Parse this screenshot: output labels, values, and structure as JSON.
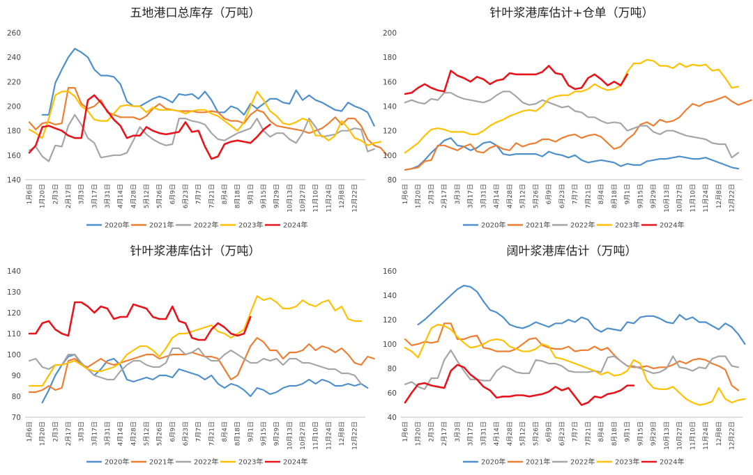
{
  "colors": {
    "2020年": "#4d8fcc",
    "2021年": "#ed7d31",
    "2022年": "#a5a5a5",
    "2023年": "#ffc000",
    "2024年": "#e8141c"
  },
  "x_ticks": [
    "1月6日",
    "1月20日",
    "2月3日",
    "2月17日",
    "3月3日",
    "3月17日",
    "3月31日",
    "4月14日",
    "4月28日",
    "5月12日",
    "5月26日",
    "6月9日",
    "6月23日",
    "7月7日",
    "7月21日",
    "8月4日",
    "8月18日",
    "9月1日",
    "9月15日",
    "9月29日",
    "10月13日",
    "10月27日",
    "11月10日",
    "11月24日",
    "12月8日",
    "12月22日"
  ],
  "chart_data": [
    {
      "type": "line",
      "title": "五地港口总库存（万吨）",
      "ylim": [
        140,
        260
      ],
      "yticks": [
        140,
        160,
        180,
        200,
        220,
        240,
        260
      ],
      "series": [
        {
          "name": "2020年",
          "start": 2,
          "values": [
            193,
            193,
            219,
            230,
            240,
            247,
            244,
            240,
            230,
            225,
            225,
            224,
            218,
            204,
            200,
            200,
            203,
            206,
            208,
            206,
            203,
            210,
            209,
            210,
            206,
            212,
            205,
            195,
            195,
            200,
            198,
            193,
            202,
            198,
            202,
            206,
            206,
            203,
            202,
            213,
            205,
            209,
            205,
            203,
            200,
            197,
            196,
            203,
            200,
            198,
            195,
            184
          ]
        },
        {
          "name": "2021年",
          "values": [
            187,
            181,
            186,
            187,
            185,
            186,
            215,
            215,
            202,
            198,
            200,
            205,
            195,
            193,
            191,
            191,
            191,
            189,
            192,
            198,
            202,
            198,
            197,
            196,
            196,
            196,
            195,
            195,
            196,
            195,
            190,
            188,
            188,
            186,
            193,
            197,
            195,
            188,
            184,
            183,
            182,
            181,
            180,
            178,
            180,
            182,
            186,
            191,
            185,
            190,
            190,
            184,
            173,
            168,
            166,
            160
          ]
        },
        {
          "name": "2022年",
          "values": [
            164,
            167,
            159,
            155,
            168,
            167,
            184,
            193,
            185,
            174,
            170,
            158,
            159,
            160,
            160,
            162,
            172,
            183,
            177,
            173,
            170,
            168,
            169,
            190,
            190,
            188,
            187,
            185,
            178,
            173,
            172,
            175,
            178,
            180,
            182,
            190,
            180,
            175,
            178,
            178,
            173,
            170,
            178,
            190,
            183,
            175,
            176,
            177,
            180,
            180,
            182,
            181,
            163,
            165
          ]
        },
        {
          "name": "2023年",
          "values": [
            181,
            178,
            174,
            190,
            209,
            212,
            212,
            208,
            200,
            196,
            189,
            188,
            188,
            194,
            200,
            201,
            200,
            200,
            195,
            199,
            197,
            197,
            197,
            196,
            194,
            196,
            197,
            197,
            194,
            192,
            188,
            184,
            180,
            187,
            200,
            212,
            205,
            196,
            192,
            186,
            185,
            187,
            190,
            188,
            176,
            176,
            172,
            176,
            188,
            182,
            174,
            172,
            168,
            170,
            171
          ]
        },
        {
          "name": "2024年",
          "values": [
            162,
            168,
            183,
            184,
            182,
            180,
            176,
            174,
            174,
            205,
            209,
            203,
            196,
            189,
            184,
            174,
            176,
            176,
            183,
            180,
            178,
            177,
            178,
            179,
            187,
            179,
            180,
            167,
            157,
            159,
            169,
            171,
            172,
            171,
            170,
            175,
            181,
            185
          ]
        }
      ]
    },
    {
      "type": "line",
      "title": "针叶浆港库估计+仓单（万吨）",
      "ylim": [
        80,
        200
      ],
      "yticks": [
        80,
        100,
        120,
        140,
        160,
        180,
        200
      ],
      "series": [
        {
          "name": "2020年",
          "values": [
            88,
            89,
            91,
            96,
            102,
            107,
            112,
            114,
            108,
            107,
            104,
            106,
            110,
            111,
            108,
            101,
            100,
            101,
            101,
            101,
            101,
            99,
            103,
            101,
            100,
            98,
            100,
            96,
            94,
            95,
            96,
            95,
            94,
            91,
            93,
            92,
            92,
            95,
            96,
            97,
            97,
            98,
            99,
            98,
            97,
            97,
            98,
            96,
            94,
            92,
            90,
            89
          ]
        },
        {
          "name": "2021年",
          "values": [
            88,
            89,
            90,
            95,
            96,
            108,
            108,
            106,
            104,
            107,
            109,
            103,
            102,
            106,
            108,
            105,
            104,
            110,
            107,
            109,
            110,
            113,
            113,
            111,
            114,
            116,
            117,
            114,
            116,
            117,
            115,
            110,
            105,
            107,
            113,
            117,
            125,
            127,
            124,
            129,
            127,
            128,
            131,
            137,
            142,
            140,
            143,
            144,
            146,
            148,
            144,
            141,
            143,
            145
          ]
        },
        {
          "name": "2022年",
          "values": [
            143,
            145,
            143,
            142,
            146,
            145,
            151,
            151,
            148,
            146,
            145,
            144,
            143,
            145,
            149,
            152,
            152,
            148,
            143,
            141,
            142,
            145,
            143,
            141,
            139,
            140,
            136,
            135,
            131,
            131,
            128,
            126,
            127,
            126,
            120,
            122,
            124,
            124,
            119,
            117,
            120,
            120,
            118,
            116,
            115,
            114,
            113,
            110,
            109,
            109,
            98,
            102
          ]
        },
        {
          "name": "2023年",
          "values": [
            102,
            106,
            110,
            116,
            121,
            122,
            121,
            119,
            119,
            119,
            117,
            117,
            120,
            124,
            127,
            129,
            132,
            134,
            136,
            137,
            136,
            140,
            146,
            148,
            149,
            149,
            152,
            152,
            154,
            158,
            155,
            153,
            154,
            157,
            168,
            175,
            175,
            178,
            177,
            173,
            173,
            171,
            175,
            172,
            174,
            173,
            174,
            169,
            170,
            163,
            155,
            156
          ]
        },
        {
          "name": "2024年",
          "values": [
            150,
            151,
            155,
            158,
            155,
            153,
            152,
            169,
            165,
            163,
            160,
            164,
            162,
            158,
            161,
            162,
            167,
            166,
            166,
            166,
            166,
            168,
            173,
            167,
            166,
            157,
            154,
            155,
            163,
            166,
            162,
            157,
            160,
            157,
            166
          ]
        }
      ]
    },
    {
      "type": "line",
      "title": "针叶浆港库估计（万吨）",
      "ylim": [
        70,
        140
      ],
      "yticks": [
        70,
        80,
        90,
        100,
        110,
        120,
        130,
        140
      ],
      "series": [
        {
          "name": "2020年",
          "start": 2,
          "values": [
            77,
            83,
            90,
            95,
            99,
            100,
            95,
            93,
            90,
            93,
            97,
            98,
            95,
            88,
            87,
            88,
            89,
            88,
            90,
            90,
            89,
            93,
            92,
            91,
            90,
            88,
            90,
            86,
            84,
            86,
            85,
            83,
            80,
            84,
            83,
            81,
            82,
            84,
            85,
            85,
            86,
            88,
            86,
            88,
            87,
            85,
            85,
            86,
            85,
            86,
            84
          ]
        },
        {
          "name": "2021年",
          "values": [
            82,
            82,
            83,
            85,
            83,
            84,
            97,
            98,
            95,
            94,
            96,
            98,
            96,
            95,
            96,
            97,
            98,
            99,
            100,
            100,
            98,
            99,
            100,
            100,
            100,
            101,
            100,
            99,
            99,
            98,
            93,
            88,
            90,
            97,
            104,
            108,
            106,
            102,
            102,
            98,
            101,
            101,
            102,
            105,
            102,
            104,
            103,
            101,
            103,
            100,
            96,
            95,
            99,
            98
          ]
        },
        {
          "name": "2022年",
          "values": [
            97,
            98,
            94,
            93,
            95,
            95,
            100,
            100,
            96,
            93,
            90,
            89,
            88,
            88,
            92,
            95,
            97,
            97,
            95,
            94,
            94,
            96,
            103,
            103,
            100,
            101,
            103,
            99,
            97,
            97,
            100,
            102,
            100,
            98,
            96,
            96,
            98,
            97,
            98,
            95,
            98,
            98,
            96,
            96,
            95,
            94,
            93,
            93,
            91,
            91,
            90,
            86
          ]
        },
        {
          "name": "2023年",
          "values": [
            85,
            85,
            85,
            90,
            95,
            95,
            96,
            97,
            95,
            93,
            92,
            92,
            93,
            94,
            96,
            100,
            102,
            104,
            104,
            102,
            99,
            103,
            108,
            110,
            110,
            111,
            112,
            113,
            114,
            111,
            110,
            108,
            110,
            112,
            120,
            128,
            126,
            127,
            125,
            122,
            122,
            123,
            126,
            124,
            123,
            125,
            126,
            121,
            123,
            117,
            116,
            116
          ]
        },
        {
          "name": "2024年",
          "values": [
            110,
            110,
            115,
            116,
            112,
            110,
            109,
            125,
            125,
            123,
            120,
            123,
            122,
            117,
            118,
            118,
            124,
            123,
            122,
            118,
            117,
            117,
            123,
            116,
            115,
            108,
            107,
            107,
            112,
            115,
            113,
            110,
            109,
            110,
            118
          ]
        }
      ]
    },
    {
      "type": "line",
      "title": "阔叶浆港库估计（万吨）",
      "ylim": [
        40,
        160
      ],
      "yticks": [
        40,
        60,
        80,
        100,
        120,
        140,
        160
      ],
      "series": [
        {
          "name": "2020年",
          "start": 2,
          "values": [
            116,
            120,
            125,
            130,
            135,
            140,
            145,
            148,
            147,
            143,
            135,
            128,
            126,
            122,
            116,
            114,
            113,
            115,
            118,
            116,
            114,
            117,
            117,
            120,
            118,
            122,
            120,
            113,
            110,
            113,
            112,
            111,
            118,
            117,
            122,
            123,
            123,
            121,
            118,
            117,
            124,
            120,
            122,
            118,
            118,
            115,
            112,
            117,
            114,
            108,
            100
          ]
        },
        {
          "name": "2021年",
          "values": [
            104,
            99,
            100,
            102,
            101,
            102,
            117,
            117,
            104,
            104,
            106,
            107,
            97,
            96,
            94,
            94,
            94,
            96,
            100,
            104,
            105,
            99,
            97,
            96,
            96,
            98,
            94,
            95,
            95,
            98,
            95,
            97,
            91,
            86,
            82,
            81,
            81,
            82,
            80,
            81,
            81,
            83,
            86,
            84,
            87,
            88,
            87,
            84,
            82,
            79,
            66,
            62
          ]
        },
        {
          "name": "2022年",
          "values": [
            67,
            69,
            65,
            63,
            72,
            72,
            87,
            95,
            86,
            78,
            71,
            71,
            70,
            70,
            78,
            82,
            80,
            77,
            76,
            76,
            87,
            86,
            84,
            84,
            82,
            78,
            77,
            77,
            77,
            78,
            77,
            89,
            90,
            86,
            82,
            82,
            80,
            78,
            76,
            77,
            80,
            90,
            81,
            80,
            78,
            81,
            80,
            88,
            90,
            90,
            82,
            81
          ]
        },
        {
          "name": "2023年",
          "values": [
            97,
            94,
            89,
            101,
            113,
            116,
            115,
            112,
            106,
            101,
            97,
            98,
            100,
            103,
            104,
            103,
            98,
            96,
            94,
            94,
            96,
            100,
            98,
            89,
            88,
            86,
            84,
            82,
            80,
            78,
            75,
            77,
            74,
            75,
            78,
            87,
            84,
            70,
            64,
            63,
            63,
            65,
            60,
            55,
            52,
            50,
            51,
            53,
            64,
            55,
            52,
            54,
            55
          ]
        },
        {
          "name": "2024年",
          "values": [
            52,
            60,
            67,
            68,
            66,
            65,
            64,
            78,
            83,
            81,
            75,
            71,
            65,
            62,
            56,
            57,
            57,
            58,
            58,
            57,
            58,
            59,
            61,
            65,
            62,
            64,
            57,
            50,
            52,
            57,
            56,
            59,
            60,
            62,
            66,
            66
          ]
        }
      ]
    }
  ]
}
